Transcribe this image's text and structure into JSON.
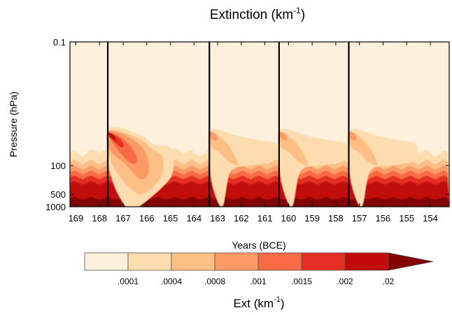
{
  "chart_data": {
    "type": "heatmap",
    "title": "Extinction (km",
    "title_superscript": "-1",
    "title_close": ")",
    "xlabel": "Years (BCE)",
    "ylabel": "Pressure (hPa)",
    "x_axis_direction": "decreasing",
    "xlim": [
      169.25,
      153.2
    ],
    "x_ticks": [
      169,
      168,
      167,
      166,
      165,
      164,
      163,
      162,
      161,
      160,
      159,
      158,
      157,
      156,
      155,
      154
    ],
    "y_scale": "log",
    "ylim": [
      0.1,
      1000
    ],
    "y_ticks": [
      0.1,
      100,
      500,
      1000
    ],
    "y_tick_labels": [
      "0.1",
      "100",
      "500",
      "1000"
    ],
    "eruption_years": [
      167.65,
      163.35,
      160.4,
      157.45
    ],
    "peak_pressure_hPa": 20,
    "colorbar": {
      "title": "Ext (km",
      "title_superscript": "-1",
      "title_close": ")",
      "levels": [
        ".0001",
        ".0004",
        ".0008",
        ".001",
        ".0015",
        ".002",
        ".02"
      ],
      "colors": [
        "#fdf1dd",
        "#fddcb0",
        "#fdbf85",
        "#fc9a66",
        "#f86a43",
        "#e52d24",
        "#c20a0a",
        "#820000"
      ],
      "extends": "max"
    }
  }
}
